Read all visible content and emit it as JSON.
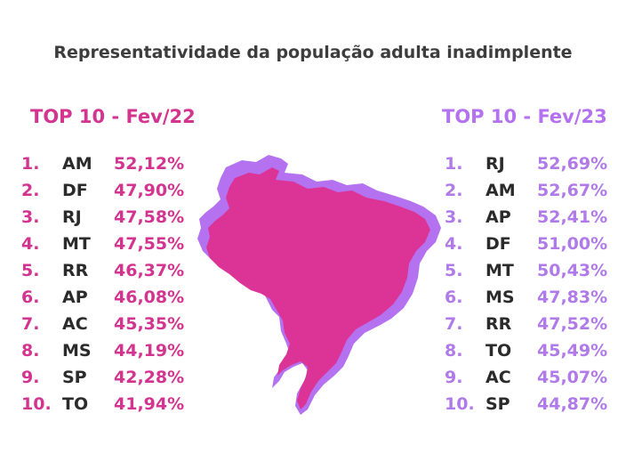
{
  "title": "Representatividade da população adulta inadimplente",
  "colors": {
    "fev22": "#d3348f",
    "fev23": "#b472f0",
    "text": "#2b2b2b"
  },
  "chart_data": {
    "type": "table",
    "title": "Representatividade da população adulta inadimplente",
    "panels": [
      {
        "heading": "TOP 10 - Fev/22",
        "rows": [
          {
            "rank": "1.",
            "state": "AM",
            "value": "52,12%"
          },
          {
            "rank": "2.",
            "state": "DF",
            "value": "47,90%"
          },
          {
            "rank": "3.",
            "state": "RJ",
            "value": "47,58%"
          },
          {
            "rank": "4.",
            "state": "MT",
            "value": "47,55%"
          },
          {
            "rank": "5.",
            "state": "RR",
            "value": "46,37%"
          },
          {
            "rank": "6.",
            "state": "AP",
            "value": "46,08%"
          },
          {
            "rank": "7.",
            "state": "AC",
            "value": "45,35%"
          },
          {
            "rank": "8.",
            "state": "MS",
            "value": "44,19%"
          },
          {
            "rank": "9.",
            "state": "SP",
            "value": "42,28%"
          },
          {
            "rank": "10.",
            "state": "TO",
            "value": "41,94%"
          }
        ]
      },
      {
        "heading": "TOP 10 - Fev/23",
        "rows": [
          {
            "rank": "1.",
            "state": "RJ",
            "value": "52,69%"
          },
          {
            "rank": "2.",
            "state": "AM",
            "value": "52,67%"
          },
          {
            "rank": "3.",
            "state": "AP",
            "value": "52,41%"
          },
          {
            "rank": "4.",
            "state": "DF",
            "value": "51,00%"
          },
          {
            "rank": "5.",
            "state": "MT",
            "value": "50,43%"
          },
          {
            "rank": "6.",
            "state": "MS",
            "value": "47,83%"
          },
          {
            "rank": "7.",
            "state": "RR",
            "value": "47,52%"
          },
          {
            "rank": "8.",
            "state": "TO",
            "value": "45,49%"
          },
          {
            "rank": "9.",
            "state": "AC",
            "value": "45,07%"
          },
          {
            "rank": "10.",
            "state": "SP",
            "value": "44,87%"
          }
        ]
      }
    ]
  }
}
